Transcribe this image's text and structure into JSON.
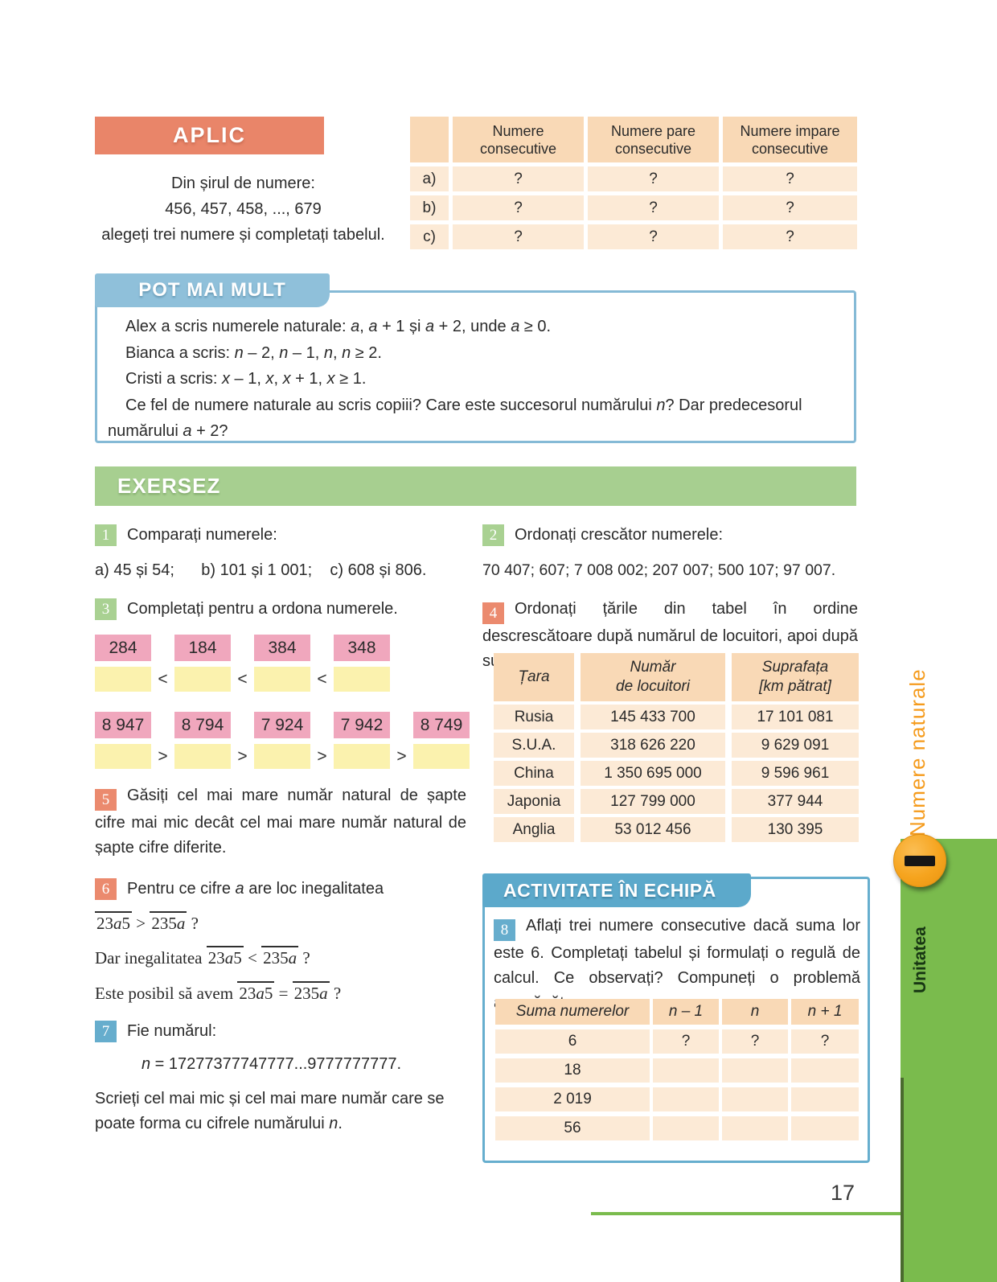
{
  "colors": {
    "accent_salmon": "#E98569",
    "accent_green": "#A7CF90",
    "accent_blue": "#5CA9CB",
    "table_header": "#F9D9B6",
    "table_cell": "#FCEAD6",
    "pink_box": "#F0A7BD",
    "yellow_box": "#FBF2AE",
    "sidebar_green": "#7ABB4D",
    "circle_orange": "#F6A41E",
    "chapter_orange": "#F59B1C"
  },
  "aplic": {
    "title": "APLIC",
    "line1": "Din șirul de numere:",
    "line2": "456, 457, 458, ..., 679",
    "line3": "alegeți trei numere și completați tabelul."
  },
  "top_table": {
    "headers": [
      "Numere\nconsecutive",
      "Numere pare\nconsecutive",
      "Numere impare\nconsecutive"
    ],
    "rows": [
      {
        "label": "a)",
        "cells": [
          "?",
          "?",
          "?"
        ]
      },
      {
        "label": "b)",
        "cells": [
          "?",
          "?",
          "?"
        ]
      },
      {
        "label": "c)",
        "cells": [
          "?",
          "?",
          "?"
        ]
      }
    ]
  },
  "pot_mai_mult": {
    "title": "POT MAI MULT",
    "lines": [
      [
        {
          "t": "Alex a scris numerele naturale: "
        },
        {
          "t": "a",
          "i": 1
        },
        {
          "t": ", "
        },
        {
          "t": "a",
          "i": 1
        },
        {
          "t": " + 1 și "
        },
        {
          "t": "a",
          "i": 1
        },
        {
          "t": " + 2, unde "
        },
        {
          "t": "a",
          "i": 1
        },
        {
          "t": " ≥ 0."
        }
      ],
      [
        {
          "t": "Bianca a scris: "
        },
        {
          "t": "n",
          "i": 1
        },
        {
          "t": " – 2, "
        },
        {
          "t": "n",
          "i": 1
        },
        {
          "t": " – 1, "
        },
        {
          "t": "n",
          "i": 1
        },
        {
          "t": ", "
        },
        {
          "t": "n",
          "i": 1
        },
        {
          "t": " ≥ 2."
        }
      ],
      [
        {
          "t": "Cristi a scris: "
        },
        {
          "t": "x",
          "i": 1
        },
        {
          "t": " – 1, "
        },
        {
          "t": "x",
          "i": 1
        },
        {
          "t": ", "
        },
        {
          "t": "x",
          "i": 1
        },
        {
          "t": " + 1, "
        },
        {
          "t": "x",
          "i": 1
        },
        {
          "t": " ≥ 1."
        }
      ],
      [
        {
          "t": "Ce fel de numere naturale au scris copiii? Care este succesorul numărului "
        },
        {
          "t": "n",
          "i": 1
        },
        {
          "t": "? Dar predecesorul numărului "
        },
        {
          "t": "a",
          "i": 1
        },
        {
          "t": " + 2?"
        }
      ]
    ]
  },
  "exersez": {
    "title": "EXERSEZ"
  },
  "ex1": {
    "num": "1",
    "title": "Comparați numerele:",
    "items": "a) 45 și 54;      b) 101 și 1 001;    c) 608 și 806."
  },
  "ex2": {
    "num": "2",
    "title": "Ordonați crescător numerele:",
    "items": "70 407; 607; 7 008 002; 207 007; 500 107; 97 007."
  },
  "ex3": {
    "num": "3",
    "title": "Completați pentru a ordona numerele.",
    "row1": {
      "values": [
        "284",
        "184",
        "384",
        "348"
      ],
      "op": "<"
    },
    "row2": {
      "values": [
        "8 947",
        "8 794",
        "7 924",
        "7 942",
        "8 749"
      ],
      "op": ">"
    }
  },
  "ex4": {
    "num": "4",
    "text": "Ordonați țările din tabel în ordine descrescătoare după numărul de locuitori, apoi după suprafață."
  },
  "country_table": {
    "headers": [
      "Țara",
      "Număr\nde locuitori",
      "Suprafața\n[km pătrat]"
    ],
    "rows": [
      [
        "Rusia",
        "145 433 700",
        "17 101 081"
      ],
      [
        "S.U.A.",
        "318 626 220",
        "9 629 091"
      ],
      [
        "China",
        "1 350 695 000",
        "9 596 961"
      ],
      [
        "Japonia",
        "127 799 000",
        "377 944"
      ],
      [
        "Anglia",
        "53 012 456",
        "130 395"
      ]
    ]
  },
  "ex5": {
    "num": "5",
    "text": "Găsiți cel mai mare număr natural de șapte cifre mai mic decât cel mai mare număr natural de șapte cifre diferite."
  },
  "ex6": {
    "num": "6",
    "intro": [
      {
        "t": "Pentru ce cifre "
      },
      {
        "t": "a",
        "i": 1
      },
      {
        "t": " are loc inegalitatea"
      }
    ],
    "ineq1": [
      {
        "t": "23a5",
        "ov": 1
      },
      {
        "t": " > "
      },
      {
        "t": "235a",
        "ov": 1
      },
      {
        "t": " ?"
      }
    ],
    "line2": [
      {
        "t": "Dar inegalitatea "
      },
      {
        "t": "23a5",
        "ov": 1
      },
      {
        "t": " < "
      },
      {
        "t": "235a",
        "ov": 1
      },
      {
        "t": " ?"
      }
    ],
    "line3": [
      {
        "t": "Este posibil să avem "
      },
      {
        "t": "23a5",
        "ov": 1
      },
      {
        "t": " = "
      },
      {
        "t": "235a",
        "ov": 1
      },
      {
        "t": " ?"
      }
    ]
  },
  "ex7": {
    "num": "7",
    "title": "Fie numărul:",
    "formula": [
      {
        "t": "n",
        "i": 1
      },
      {
        "t": " = 17277377747777...9777777777."
      }
    ],
    "outro": [
      {
        "t": "Scrieți cel mai mic și cel mai mare număr care se poate forma cu cifrele numărului "
      },
      {
        "t": "n",
        "i": 1
      },
      {
        "t": "."
      }
    ]
  },
  "activity": {
    "title": "ACTIVITATE ÎN ECHIPĂ"
  },
  "ex8": {
    "num": "8",
    "text": "Aflați trei numere consecutive dacă suma lor este 6. Completați tabelul și formulați o regulă de calcul. Ce observați? Compuneți o problemă asemănătoare."
  },
  "sum_table": {
    "headers": [
      "Suma numerelor",
      "n – 1",
      "n",
      "n + 1"
    ],
    "rows": [
      [
        "6",
        "?",
        "?",
        "?"
      ],
      [
        "18",
        "",
        "",
        ""
      ],
      [
        "2 019",
        "",
        "",
        ""
      ],
      [
        "56",
        "",
        "",
        ""
      ]
    ]
  },
  "sidebar": {
    "chapter": "Numere naturale",
    "unit_word": "Unitatea",
    "unit_number": "I"
  },
  "footer": {
    "page_number": "17"
  }
}
